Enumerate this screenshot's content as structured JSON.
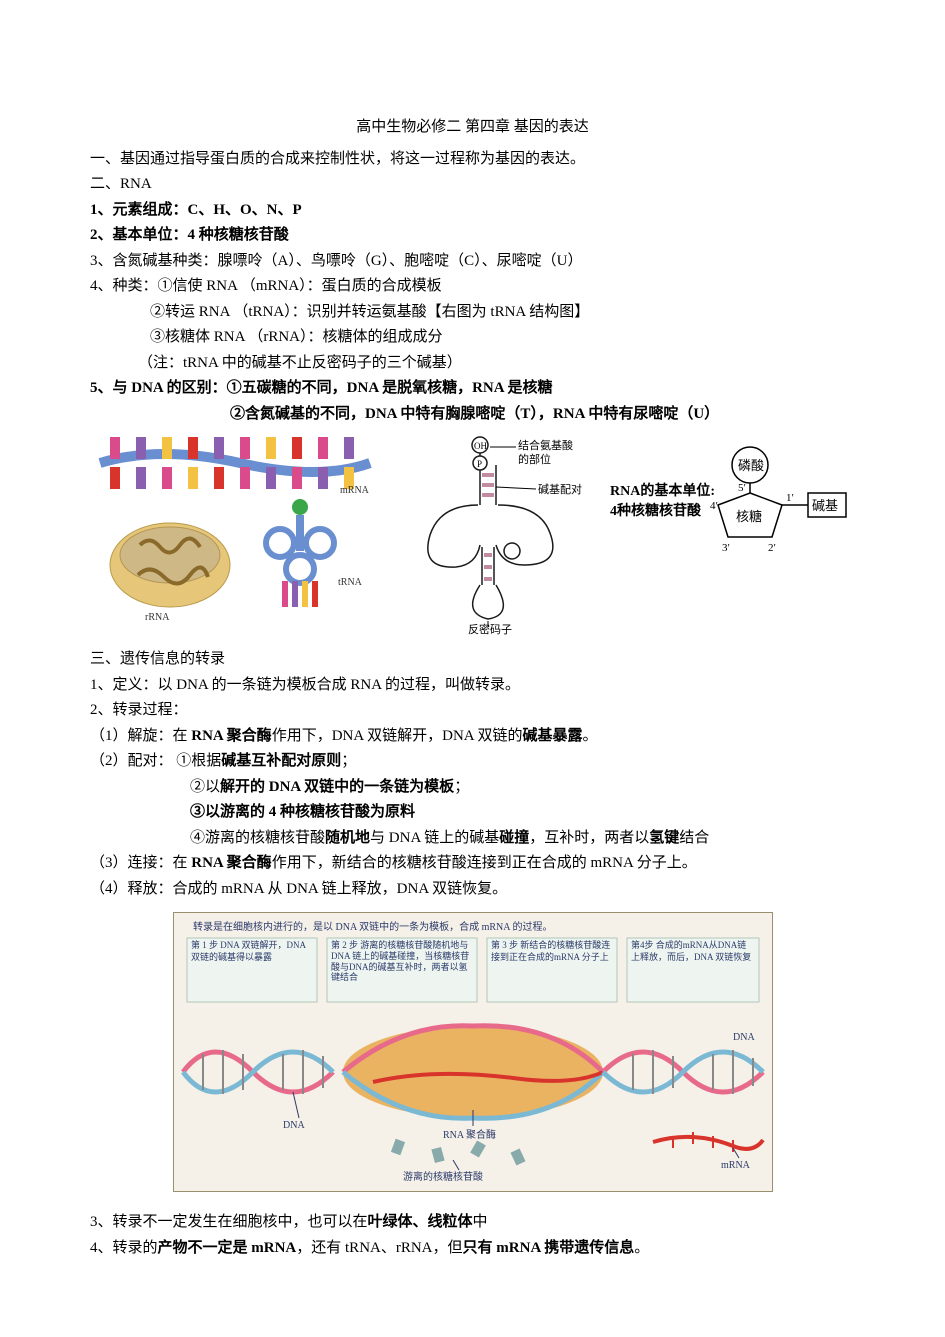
{
  "title": "高中生物必修二  第四章  基因的表达",
  "sec1": "一、基因通过指导蛋白质的合成来控制性状，将这一过程称为基因的表达。",
  "sec2_head": "二、RNA",
  "rna": {
    "item1": "1、元素组成：C、H、O、N、P",
    "item2": "2、基本单位：4 种核糖核苷酸",
    "item3": "3、含氮碱基种类：腺嘌呤（A）、鸟嘌呤（G）、胞嘧啶（C）、尿嘧啶（U）",
    "item4a": "4、种类：①信使 RNA （mRNA）：蛋白质的合成模板",
    "item4b": "②转运 RNA （tRNA）：识别并转运氨基酸【右图为 tRNA  结构图】",
    "item4c": "③核糖体 RNA （rRNA）：核糖体的组成成分",
    "item4note": "（注：tRNA  中的碱基不止反密码子的三个碱基）",
    "item5a": "5、与 DNA  的区别：①五碳糖的不同，DNA 是脱氧核糖，RNA 是核糖",
    "item5b": "②含氮碱基的不同，DNA 中特有胸腺嘧啶（T），RNA 中特有尿嘧啶（U）"
  },
  "fig1": {
    "mrna_label": "mRNA",
    "trna_label": "tRNA",
    "rrna_label": "rRNA",
    "mrna_colors": [
      "#d94b8a",
      "#8a5faf",
      "#f4c242",
      "#d9342b",
      "#8a5faf",
      "#d94b8a",
      "#f4c242",
      "#d9342b",
      "#d94b8a",
      "#8a5faf"
    ],
    "ribbon_color": "#6a8fd0",
    "rrna_fill": "#e6c77a",
    "rrna_inner": "#c9b58a",
    "trna_stem_colors": [
      "#d94b8a",
      "#8a5faf",
      "#f4c242",
      "#d9342b"
    ],
    "trna_head": "#3aa64a"
  },
  "fig2": {
    "oh_label": "OH",
    "p_label": "P",
    "site_label": "结合氨基酸\n的部位",
    "pair_label": "碱基配对",
    "anticodon_label": "反密码子",
    "line_color": "#1a1a1a",
    "bar_color": "#c08aa0",
    "fill": "#ffffff"
  },
  "fig3": {
    "caption1": "RNA的基本单位:",
    "caption2": "4种核糖核苷酸",
    "phosphate": "磷酸",
    "sugar": "核糖",
    "base": "碱基",
    "pos_5": "5′",
    "pos_4": "4′",
    "pos_3": "3′",
    "pos_2": "2′",
    "pos_1": "1′",
    "line": "#000000"
  },
  "sec3_head": "三、遗传信息的转录",
  "trans": {
    "item1": "1、定义：以 DNA 的一条链为模板合成 RNA 的过程，叫做转录。",
    "item2": "2、转录过程：",
    "step1_pre": "（1）解旋：在 ",
    "step1_bold": "RNA 聚合酶",
    "step1_post": "作用下，DNA 双链解开，DNA 双链的",
    "step1_bold2": "碱基暴露",
    "step1_end": "。",
    "step2_pre": "（2）配对：  ①根据",
    "step2_bold": "碱基互补配对原则",
    "step2_end": "；",
    "step2b_pre": "②以",
    "step2b_bold": "解开的 DNA 双链中的一条链为模板",
    "step2b_end": "；",
    "step2c_pre": "③以",
    "step2c_bold": "游离的 4 种核糖核苷酸为原料",
    "step2d_pre": "④游离的核糖核苷酸",
    "step2d_bold": "随机地",
    "step2d_mid": "与 DNA 链上的碱基",
    "step2d_bold2": "碰撞",
    "step2d_mid2": "，互补时，两者以",
    "step2d_bold3": "氢键",
    "step2d_end": "结合",
    "step3_pre": "（3）连接：在 ",
    "step3_bold": "RNA 聚合酶",
    "step3_post": "作用下，新结合的核糖核苷酸连接到正在合成的 mRNA 分子上。",
    "step4": "（4）释放：合成的 mRNA 从 DNA 链上释放，DNA 双链恢复。"
  },
  "fig4": {
    "header": "转录是在细胞核内进行的，是以 DNA 双链中的一条为模板，合成 mRNA 的过程。",
    "col1": "第 1 步  DNA 双链解开，DNA双链的碱基得以暴露",
    "col2": "第 2 步  游离的核糖核苷酸随机地与 DNA 链上的碱基碰撞，当核糖核苷酸与DNA的碱基互补时，两者以氢键结合",
    "col3": "第 3 步  新结合的核糖核苷酸连接到正在合成的mRNA 分子上",
    "col4": "第4步  合成的mRNA从DNA链上释放，而后，DNA 双链恢复",
    "dna_label": "DNA",
    "enzyme_label": "RNA 聚合酶",
    "nucleotide_label": "游离的核糖核苷酸",
    "mrna_label": "mRNA",
    "bg": "#f5f0e8",
    "panel_bg": "#eef5f0",
    "border": "#9a9070",
    "helix_a": "#e86a8a",
    "helix_b": "#7ab8d4",
    "enzyme_fill": "#e8a84a",
    "mrna_color": "#d9342b",
    "text_color": "#2a3a6a"
  },
  "sec3_item3_pre": "3、转录不一定发生在细胞核中，也可以在",
  "sec3_item3_bold": "叶绿体、线粒体",
  "sec3_item3_end": "中",
  "sec3_item4_pre": "4、转录的",
  "sec3_item4_bold1": "产物不一定是 mRNA",
  "sec3_item4_mid": "，还有 tRNA、rRNA，但",
  "sec3_item4_bold2": "只有 mRNA 携带遗传信息",
  "sec3_item4_end": "。"
}
